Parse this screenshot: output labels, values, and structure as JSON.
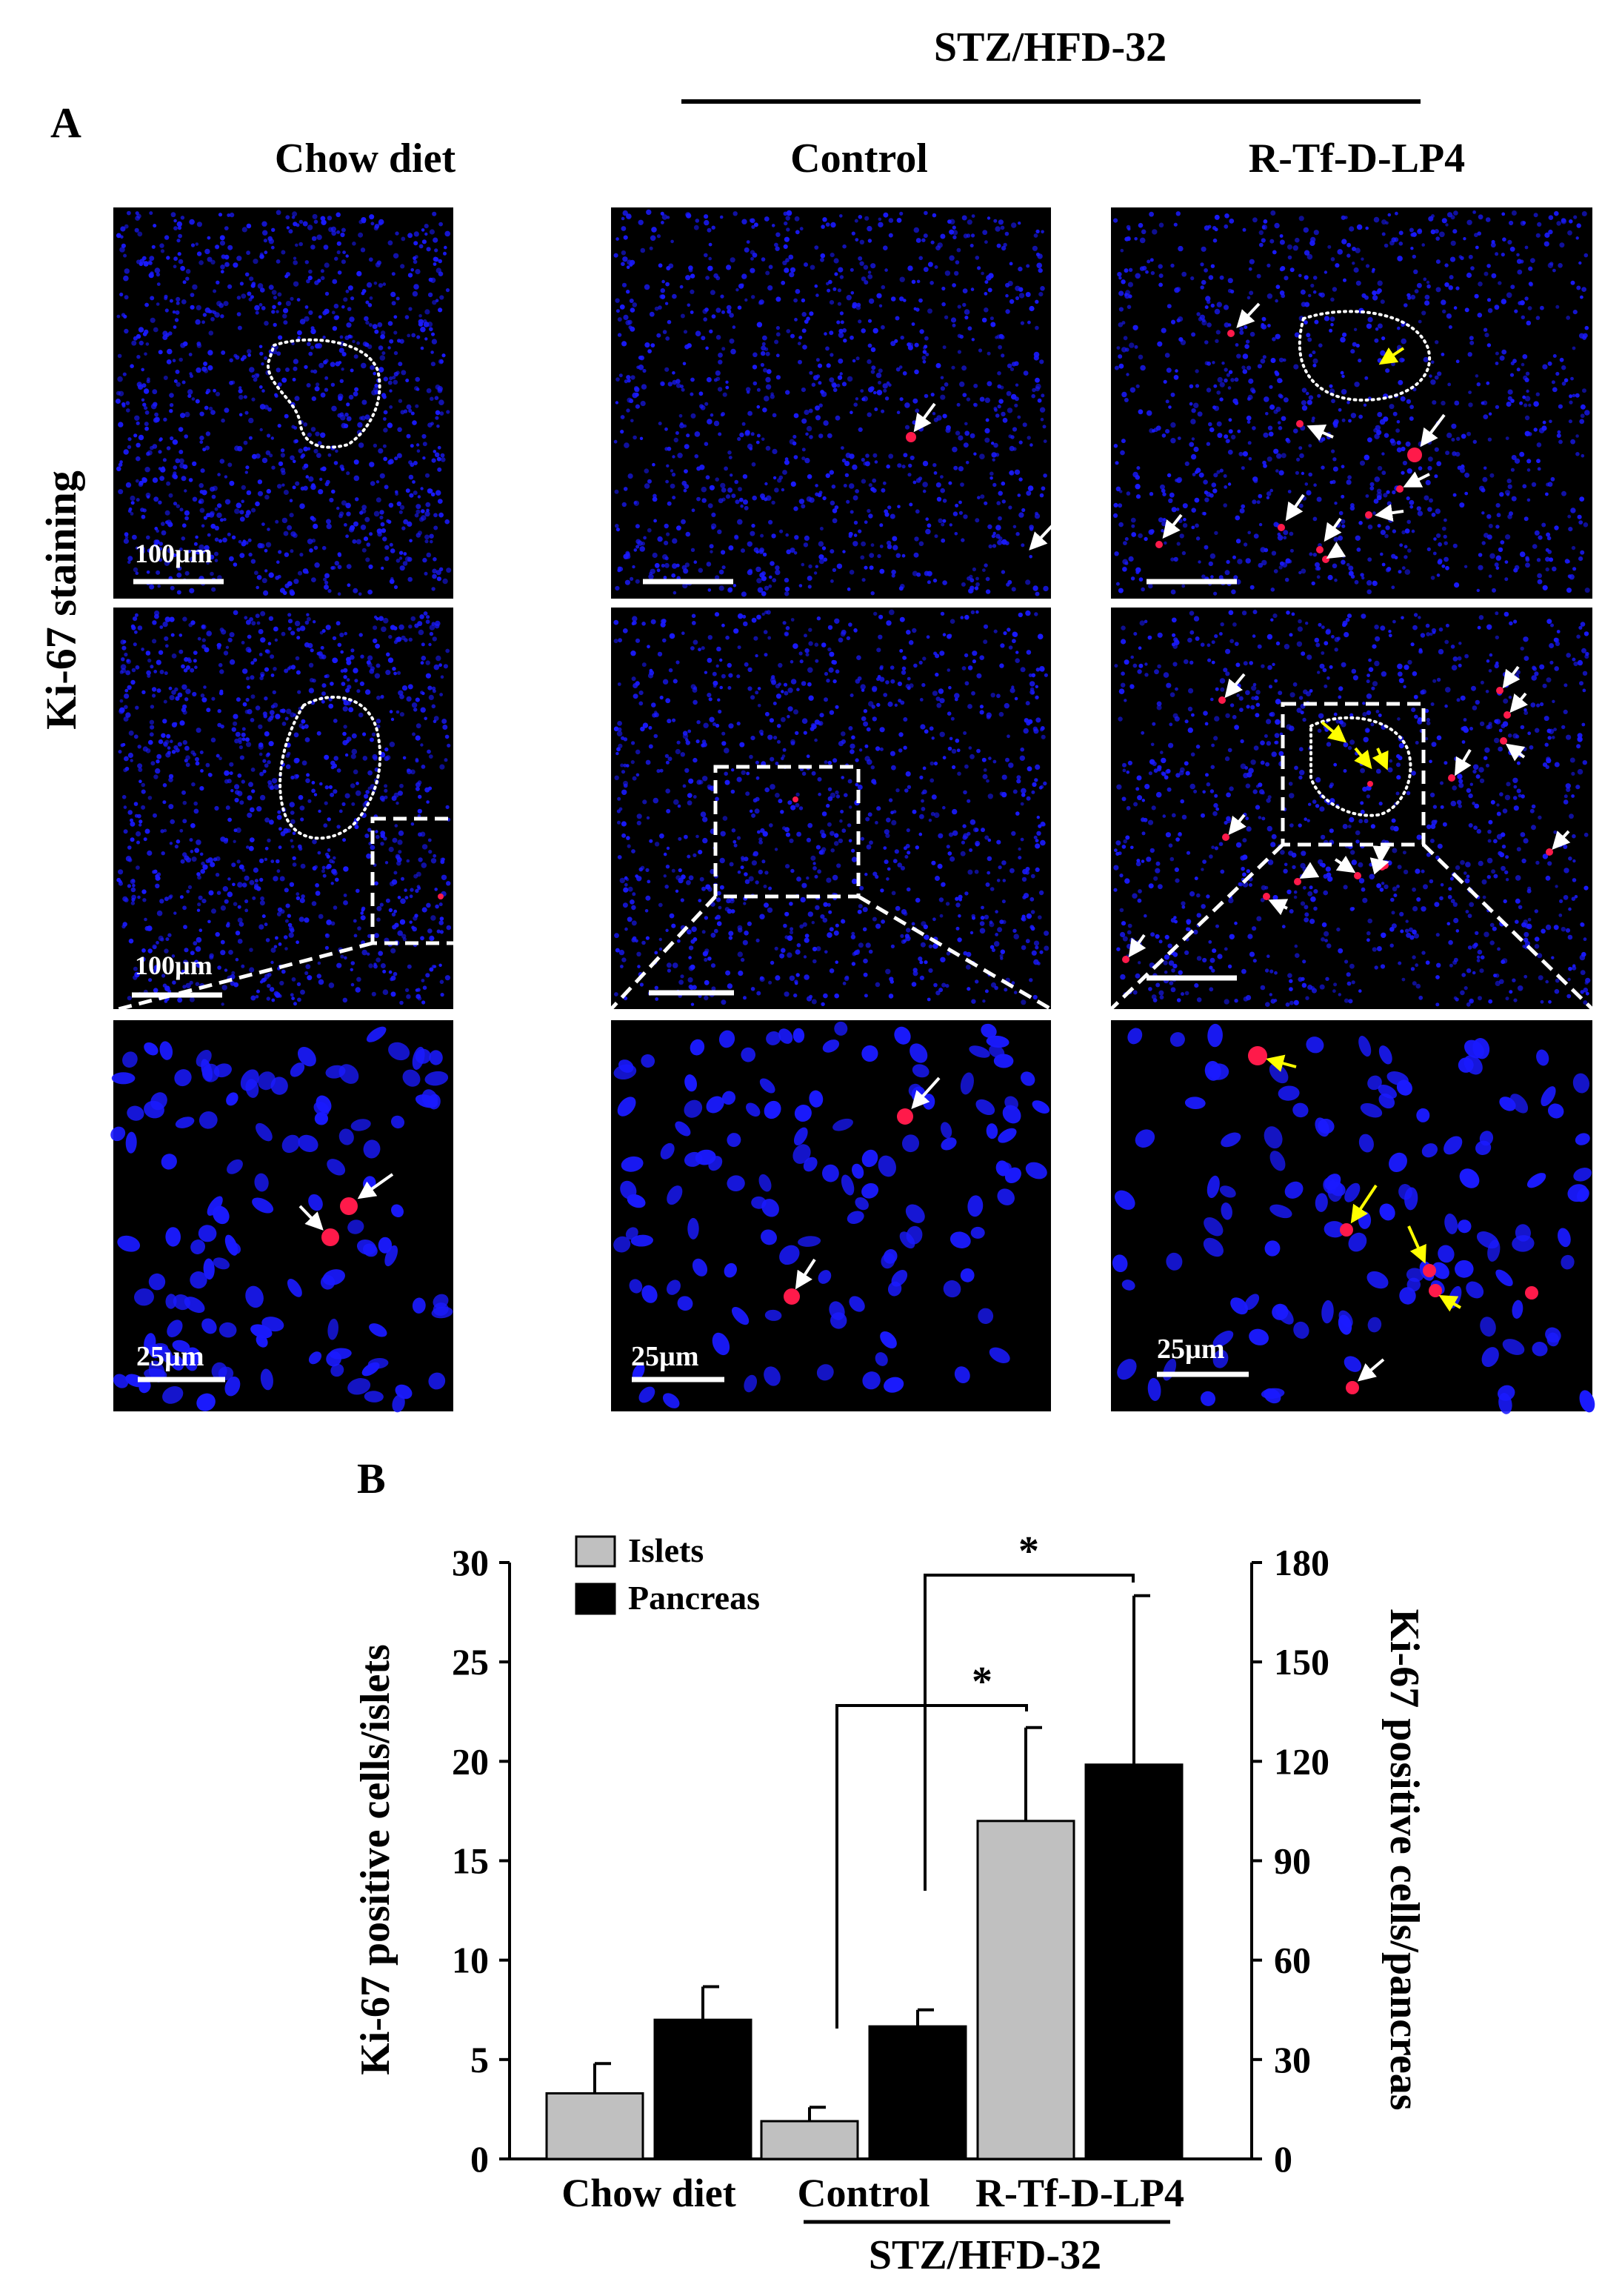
{
  "panel_a": {
    "label": "A",
    "group_title": "STZ/HFD-32",
    "column_titles": [
      "Chow diet",
      "Control",
      "R-Tf-D-LP4"
    ],
    "row_label": "Ki-67 staining",
    "scale_bars": {
      "row1": "100µm",
      "row2": "100µm",
      "row3": [
        "25µm",
        "25µm",
        "25µm"
      ]
    },
    "colors": {
      "background": "#000000",
      "nuclei": "#1a1aff",
      "ki67_positive": "#ff1a4a",
      "islet_outline": "#ffffff",
      "inset_box": "#ffffff",
      "white_arrow": "#ffffff",
      "yellow_arrow": "#ffff00"
    }
  },
  "panel_b": {
    "label": "B",
    "chart_data": {
      "type": "bar",
      "categories": [
        "Chow diet",
        "Control",
        "R-Tf-D-LP4"
      ],
      "group_label": "STZ/HFD-32",
      "group_categories": [
        "Control",
        "R-Tf-D-LP4"
      ],
      "series": [
        {
          "name": "Islets",
          "axis": "left",
          "color": "#c0c0c0",
          "values": [
            3.3,
            1.9,
            17.0
          ],
          "errors": [
            1.5,
            0.7,
            4.7
          ]
        },
        {
          "name": "Pancreas",
          "axis": "right",
          "color": "#000000",
          "values": [
            42,
            40,
            119
          ],
          "errors": [
            10,
            5,
            51
          ]
        }
      ],
      "ylabel": "Ki-67 positive cells/islets",
      "ylabel_right": "Ki-67 positive cells/pancreas",
      "ylim": [
        0,
        30
      ],
      "ylim_right": [
        0,
        180
      ],
      "yticks": [
        0,
        5,
        10,
        15,
        20,
        25,
        30
      ],
      "yticks_right": [
        0,
        30,
        60,
        90,
        120,
        150,
        180
      ],
      "legend_position": "top-left",
      "significance": [
        {
          "between": [
            "Control (Islets)",
            "R-Tf-D-LP4 (Islets)"
          ],
          "label": "*"
        },
        {
          "between": [
            "Control (Pancreas)",
            "R-Tf-D-LP4 (Pancreas)"
          ],
          "label": "*"
        }
      ]
    }
  }
}
